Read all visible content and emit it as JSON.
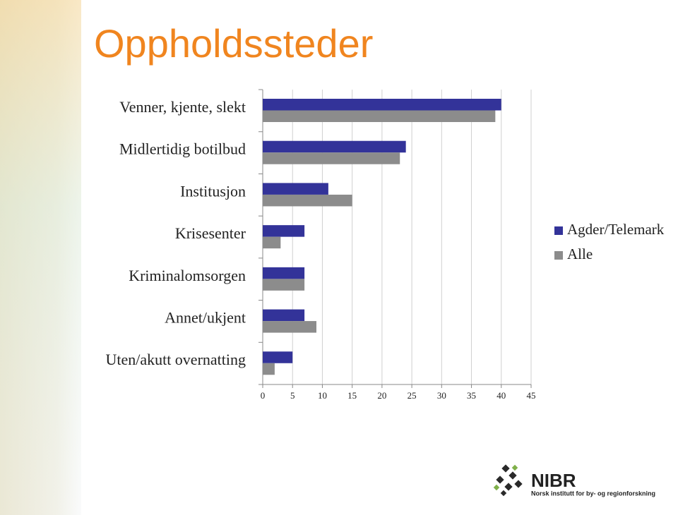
{
  "chart_data": {
    "type": "hbar",
    "title": "Oppholdssteder",
    "categories": [
      "Venner, kjente, slekt",
      "Midlertidig botilbud",
      "Institusjon",
      "Krisesenter",
      "Kriminalomsorgen",
      "Annet/ukjent",
      "Uten/akutt overnatting"
    ],
    "series": [
      {
        "name": "Agder/Telemark",
        "color": "#333399",
        "values": [
          40,
          24,
          11,
          7,
          7,
          7,
          5
        ]
      },
      {
        "name": "Alle",
        "color": "#8c8c8c",
        "values": [
          39,
          23,
          15,
          3,
          7,
          9,
          2
        ]
      }
    ],
    "xlim": [
      0,
      45
    ],
    "xticks": [
      0,
      5,
      10,
      15,
      20,
      25,
      30,
      35,
      40,
      45
    ],
    "grid": true,
    "legend": "right"
  },
  "logo": {
    "name": "NIBR",
    "subtitle": "Norsk institutt for by- og regionforskning"
  }
}
